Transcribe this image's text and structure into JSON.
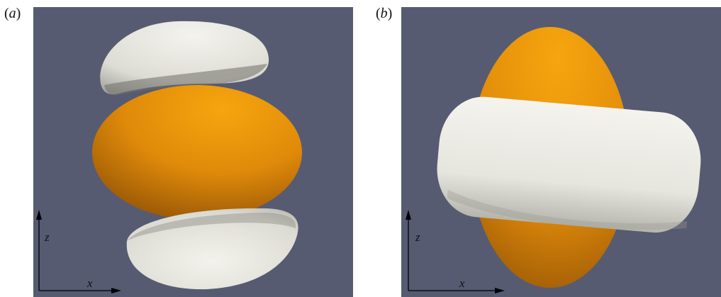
{
  "figure": {
    "panels": [
      {
        "label": "a",
        "axes": {
          "horizontal": "x",
          "vertical": "z"
        }
      },
      {
        "label": "b",
        "axes": {
          "horizontal": "x",
          "vertical": "z"
        }
      }
    ],
    "colors": {
      "background": "#565b72",
      "orange_surface": "#f0a010",
      "white_surface": "#ecebe4",
      "axes": "#000000"
    }
  }
}
